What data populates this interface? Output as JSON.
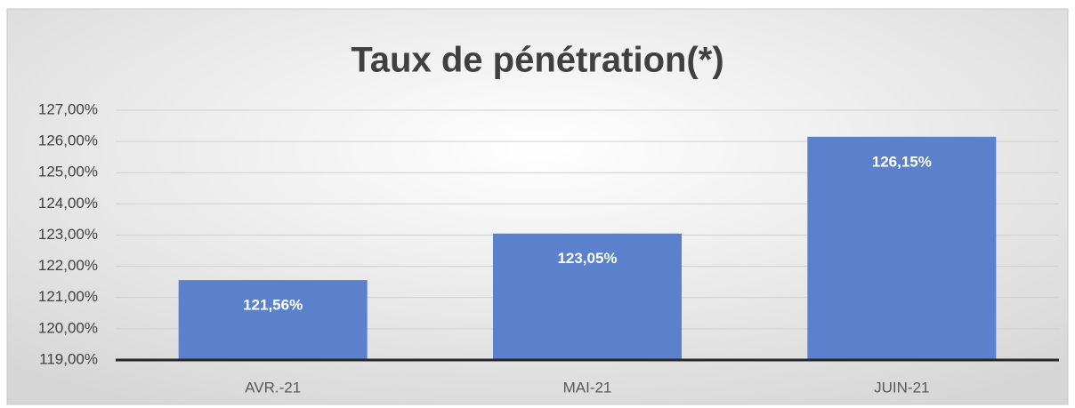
{
  "chart_data": {
    "type": "bar",
    "title": "Taux de pénétration(*)",
    "categories": [
      "AVR.-21",
      "MAI-21",
      "JUIN-21"
    ],
    "values": [
      121.56,
      123.05,
      126.15
    ],
    "value_labels": [
      "121,56%",
      "123,05%",
      "126,15%"
    ],
    "color": "#5b80cc",
    "ylim": [
      119,
      127
    ],
    "yticks": [
      {
        "value": 119,
        "label": "119,00%"
      },
      {
        "value": 120,
        "label": "120,00%"
      },
      {
        "value": 121,
        "label": "121,00%"
      },
      {
        "value": 122,
        "label": "122,00%"
      },
      {
        "value": 123,
        "label": "123,00%"
      },
      {
        "value": 124,
        "label": "124,00%"
      },
      {
        "value": 125,
        "label": "125,00%"
      },
      {
        "value": 126,
        "label": "126,00%"
      },
      {
        "value": 127,
        "label": "127,00%"
      }
    ],
    "grid": true
  }
}
